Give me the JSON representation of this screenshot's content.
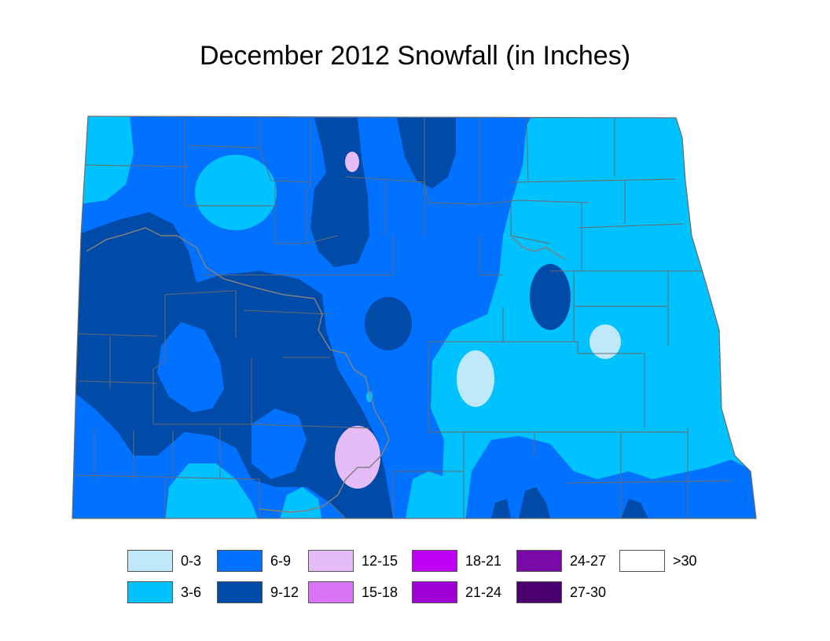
{
  "title": "December 2012 Snowfall (in Inches)",
  "legend": [
    {
      "label": "0-3",
      "color": "#bfe8fa"
    },
    {
      "label": "6-9",
      "color": "#0072ff"
    },
    {
      "label": "12-15",
      "color": "#e6bcf7"
    },
    {
      "label": "18-21",
      "color": "#c000f5"
    },
    {
      "label": "24-27",
      "color": "#7a0aa8"
    },
    {
      "label": ">30",
      "color": "#ffffff"
    },
    {
      "label": "3-6",
      "color": "#00c2ff"
    },
    {
      "label": "9-12",
      "color": "#004aa8"
    },
    {
      "label": "15-18",
      "color": "#d873f5"
    },
    {
      "label": "21-24",
      "color": "#9f00d6"
    },
    {
      "label": "27-30",
      "color": "#4a006f"
    }
  ],
  "colors": {
    "county_border": "#6b6b6b",
    "river": "#808080"
  }
}
